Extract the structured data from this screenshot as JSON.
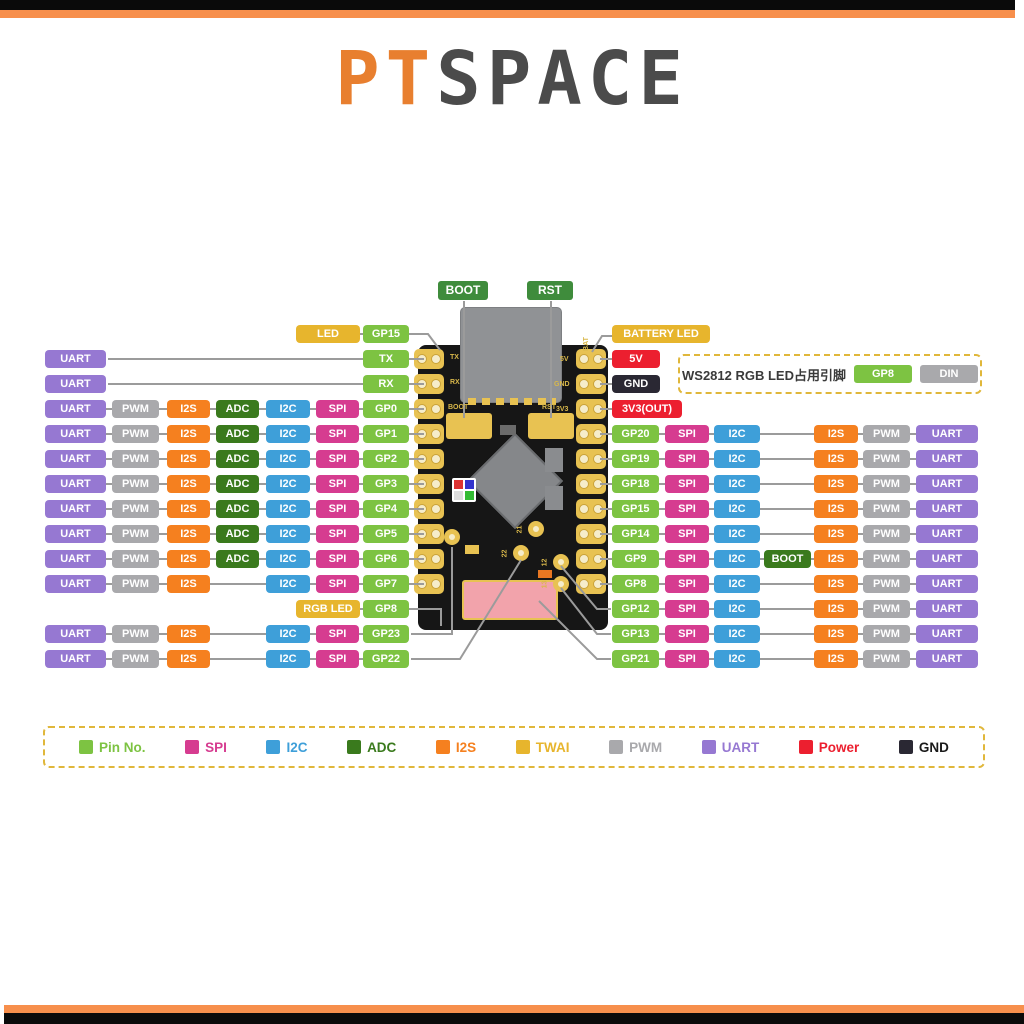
{
  "brand": {
    "pt": "PT",
    "space": "SPACE"
  },
  "colors": {
    "pin": "#7DC342",
    "spi": "#D63C90",
    "i2c": "#3E9FD9",
    "adc": "#3A7A1D",
    "i2s": "#F5801F",
    "twai": "#E7B52D",
    "pwm": "#A9A9AC",
    "uart": "#9678D2",
    "power": "#EC1F2F",
    "gnd": "#2A2833",
    "boot_label": "#3F8C3C",
    "wire": "#9B9B9B",
    "accent_orange": "#F78F4C",
    "logo_orange": "#E87F2F",
    "logo_dark": "#4B4B4B",
    "pcb": "#161616",
    "pad_gold": "#E8C252",
    "antenna_pink": "#F2A3AB"
  },
  "top_labels": {
    "boot": "BOOT",
    "rst": "RST"
  },
  "note": {
    "text": "WS2812 RGB LED占用引脚",
    "pin": "GP8",
    "din": "DIN"
  },
  "board": {
    "silk": {
      "tx": "TX",
      "rx": "RX",
      "boot": "BOOT",
      "rst": "RST",
      "bat": "BAT",
      "v5": "5V",
      "gnd": "GND",
      "v3": "3V3"
    },
    "via_labels": [
      "22",
      "21",
      "12",
      "13"
    ]
  },
  "left_rows": [
    {
      "chips": [
        {
          "slot": "led",
          "label": "LED",
          "type": "twai"
        },
        {
          "slot": "gp",
          "label": "GP15",
          "type": "pin"
        }
      ]
    },
    {
      "chips": [
        {
          "slot": "uart",
          "label": "UART",
          "type": "uart"
        },
        {
          "slot": "gp",
          "label": "TX",
          "type": "pin"
        }
      ]
    },
    {
      "chips": [
        {
          "slot": "uart",
          "label": "UART",
          "type": "uart"
        },
        {
          "slot": "gp",
          "label": "RX",
          "type": "pin"
        }
      ]
    },
    {
      "chips": [
        {
          "slot": "uart",
          "label": "UART",
          "type": "uart"
        },
        {
          "slot": "pwm",
          "label": "PWM",
          "type": "pwm"
        },
        {
          "slot": "i2s",
          "label": "I2S",
          "type": "i2s"
        },
        {
          "slot": "adc",
          "label": "ADC",
          "type": "adc"
        },
        {
          "slot": "i2c",
          "label": "I2C",
          "type": "i2c"
        },
        {
          "slot": "spi",
          "label": "SPI",
          "type": "spi"
        },
        {
          "slot": "gp",
          "label": "GP0",
          "type": "pin"
        }
      ]
    },
    {
      "chips": [
        {
          "slot": "uart",
          "label": "UART",
          "type": "uart"
        },
        {
          "slot": "pwm",
          "label": "PWM",
          "type": "pwm"
        },
        {
          "slot": "i2s",
          "label": "I2S",
          "type": "i2s"
        },
        {
          "slot": "adc",
          "label": "ADC",
          "type": "adc"
        },
        {
          "slot": "i2c",
          "label": "I2C",
          "type": "i2c"
        },
        {
          "slot": "spi",
          "label": "SPI",
          "type": "spi"
        },
        {
          "slot": "gp",
          "label": "GP1",
          "type": "pin"
        }
      ]
    },
    {
      "chips": [
        {
          "slot": "uart",
          "label": "UART",
          "type": "uart"
        },
        {
          "slot": "pwm",
          "label": "PWM",
          "type": "pwm"
        },
        {
          "slot": "i2s",
          "label": "I2S",
          "type": "i2s"
        },
        {
          "slot": "adc",
          "label": "ADC",
          "type": "adc"
        },
        {
          "slot": "i2c",
          "label": "I2C",
          "type": "i2c"
        },
        {
          "slot": "spi",
          "label": "SPI",
          "type": "spi"
        },
        {
          "slot": "gp",
          "label": "GP2",
          "type": "pin"
        }
      ]
    },
    {
      "chips": [
        {
          "slot": "uart",
          "label": "UART",
          "type": "uart"
        },
        {
          "slot": "pwm",
          "label": "PWM",
          "type": "pwm"
        },
        {
          "slot": "i2s",
          "label": "I2S",
          "type": "i2s"
        },
        {
          "slot": "adc",
          "label": "ADC",
          "type": "adc"
        },
        {
          "slot": "i2c",
          "label": "I2C",
          "type": "i2c"
        },
        {
          "slot": "spi",
          "label": "SPI",
          "type": "spi"
        },
        {
          "slot": "gp",
          "label": "GP3",
          "type": "pin"
        }
      ]
    },
    {
      "chips": [
        {
          "slot": "uart",
          "label": "UART",
          "type": "uart"
        },
        {
          "slot": "pwm",
          "label": "PWM",
          "type": "pwm"
        },
        {
          "slot": "i2s",
          "label": "I2S",
          "type": "i2s"
        },
        {
          "slot": "adc",
          "label": "ADC",
          "type": "adc"
        },
        {
          "slot": "i2c",
          "label": "I2C",
          "type": "i2c"
        },
        {
          "slot": "spi",
          "label": "SPI",
          "type": "spi"
        },
        {
          "slot": "gp",
          "label": "GP4",
          "type": "pin"
        }
      ]
    },
    {
      "chips": [
        {
          "slot": "uart",
          "label": "UART",
          "type": "uart"
        },
        {
          "slot": "pwm",
          "label": "PWM",
          "type": "pwm"
        },
        {
          "slot": "i2s",
          "label": "I2S",
          "type": "i2s"
        },
        {
          "slot": "adc",
          "label": "ADC",
          "type": "adc"
        },
        {
          "slot": "i2c",
          "label": "I2C",
          "type": "i2c"
        },
        {
          "slot": "spi",
          "label": "SPI",
          "type": "spi"
        },
        {
          "slot": "gp",
          "label": "GP5",
          "type": "pin"
        }
      ]
    },
    {
      "chips": [
        {
          "slot": "uart",
          "label": "UART",
          "type": "uart"
        },
        {
          "slot": "pwm",
          "label": "PWM",
          "type": "pwm"
        },
        {
          "slot": "i2s",
          "label": "I2S",
          "type": "i2s"
        },
        {
          "slot": "adc",
          "label": "ADC",
          "type": "adc"
        },
        {
          "slot": "i2c",
          "label": "I2C",
          "type": "i2c"
        },
        {
          "slot": "spi",
          "label": "SPI",
          "type": "spi"
        },
        {
          "slot": "gp",
          "label": "GP6",
          "type": "pin"
        }
      ]
    },
    {
      "chips": [
        {
          "slot": "uart",
          "label": "UART",
          "type": "uart"
        },
        {
          "slot": "pwm",
          "label": "PWM",
          "type": "pwm"
        },
        {
          "slot": "i2s",
          "label": "I2S",
          "type": "i2s"
        },
        {
          "slot": "i2c",
          "label": "I2C",
          "type": "i2c"
        },
        {
          "slot": "spi",
          "label": "SPI",
          "type": "spi"
        },
        {
          "slot": "gp",
          "label": "GP7",
          "type": "pin"
        }
      ]
    },
    {
      "chips": [
        {
          "slot": "led",
          "label": "RGB LED",
          "type": "twai"
        },
        {
          "slot": "gp",
          "label": "GP8",
          "type": "pin"
        }
      ]
    },
    {
      "chips": [
        {
          "slot": "uart",
          "label": "UART",
          "type": "uart"
        },
        {
          "slot": "pwm",
          "label": "PWM",
          "type": "pwm"
        },
        {
          "slot": "i2s",
          "label": "I2S",
          "type": "i2s"
        },
        {
          "slot": "i2c",
          "label": "I2C",
          "type": "i2c"
        },
        {
          "slot": "spi",
          "label": "SPI",
          "type": "spi"
        },
        {
          "slot": "gp",
          "label": "GP23",
          "type": "pin"
        }
      ]
    },
    {
      "chips": [
        {
          "slot": "uart",
          "label": "UART",
          "type": "uart"
        },
        {
          "slot": "pwm",
          "label": "PWM",
          "type": "pwm"
        },
        {
          "slot": "i2s",
          "label": "I2S",
          "type": "i2s"
        },
        {
          "slot": "i2c",
          "label": "I2C",
          "type": "i2c"
        },
        {
          "slot": "spi",
          "label": "SPI",
          "type": "spi"
        },
        {
          "slot": "gp",
          "label": "GP22",
          "type": "pin"
        }
      ]
    }
  ],
  "right_rows": [
    {
      "chips": [
        {
          "slot": "wide",
          "label": "BATTERY LED",
          "type": "twai"
        }
      ]
    },
    {
      "chips": [
        {
          "slot": "pwr",
          "label": "5V",
          "type": "power"
        }
      ]
    },
    {
      "chips": [
        {
          "slot": "pwr",
          "label": "GND",
          "type": "gnd"
        }
      ]
    },
    {
      "chips": [
        {
          "slot": "pwr3",
          "label": "3V3(OUT)",
          "type": "power"
        }
      ]
    },
    {
      "chips": [
        {
          "slot": "gp",
          "label": "GP20",
          "type": "pin"
        },
        {
          "slot": "spi",
          "label": "SPI",
          "type": "spi"
        },
        {
          "slot": "i2c",
          "label": "I2C",
          "type": "i2c"
        },
        {
          "slot": "i2s",
          "label": "I2S",
          "type": "i2s"
        },
        {
          "slot": "pwm",
          "label": "PWM",
          "type": "pwm"
        },
        {
          "slot": "uart",
          "label": "UART",
          "type": "uart"
        }
      ]
    },
    {
      "chips": [
        {
          "slot": "gp",
          "label": "GP19",
          "type": "pin"
        },
        {
          "slot": "spi",
          "label": "SPI",
          "type": "spi"
        },
        {
          "slot": "i2c",
          "label": "I2C",
          "type": "i2c"
        },
        {
          "slot": "i2s",
          "label": "I2S",
          "type": "i2s"
        },
        {
          "slot": "pwm",
          "label": "PWM",
          "type": "pwm"
        },
        {
          "slot": "uart",
          "label": "UART",
          "type": "uart"
        }
      ]
    },
    {
      "chips": [
        {
          "slot": "gp",
          "label": "GP18",
          "type": "pin"
        },
        {
          "slot": "spi",
          "label": "SPI",
          "type": "spi"
        },
        {
          "slot": "i2c",
          "label": "I2C",
          "type": "i2c"
        },
        {
          "slot": "i2s",
          "label": "I2S",
          "type": "i2s"
        },
        {
          "slot": "pwm",
          "label": "PWM",
          "type": "pwm"
        },
        {
          "slot": "uart",
          "label": "UART",
          "type": "uart"
        }
      ]
    },
    {
      "chips": [
        {
          "slot": "gp",
          "label": "GP15",
          "type": "pin"
        },
        {
          "slot": "spi",
          "label": "SPI",
          "type": "spi"
        },
        {
          "slot": "i2c",
          "label": "I2C",
          "type": "i2c"
        },
        {
          "slot": "i2s",
          "label": "I2S",
          "type": "i2s"
        },
        {
          "slot": "pwm",
          "label": "PWM",
          "type": "pwm"
        },
        {
          "slot": "uart",
          "label": "UART",
          "type": "uart"
        }
      ]
    },
    {
      "chips": [
        {
          "slot": "gp",
          "label": "GP14",
          "type": "pin"
        },
        {
          "slot": "spi",
          "label": "SPI",
          "type": "spi"
        },
        {
          "slot": "i2c",
          "label": "I2C",
          "type": "i2c"
        },
        {
          "slot": "i2s",
          "label": "I2S",
          "type": "i2s"
        },
        {
          "slot": "pwm",
          "label": "PWM",
          "type": "pwm"
        },
        {
          "slot": "uart",
          "label": "UART",
          "type": "uart"
        }
      ]
    },
    {
      "chips": [
        {
          "slot": "gp",
          "label": "GP9",
          "type": "pin"
        },
        {
          "slot": "spi",
          "label": "SPI",
          "type": "spi"
        },
        {
          "slot": "i2c",
          "label": "I2C",
          "type": "i2c"
        },
        {
          "slot": "boot",
          "label": "BOOT",
          "type": "adc"
        },
        {
          "slot": "i2s",
          "label": "I2S",
          "type": "i2s"
        },
        {
          "slot": "pwm",
          "label": "PWM",
          "type": "pwm"
        },
        {
          "slot": "uart",
          "label": "UART",
          "type": "uart"
        }
      ]
    },
    {
      "chips": [
        {
          "slot": "gp",
          "label": "GP8",
          "type": "pin"
        },
        {
          "slot": "spi",
          "label": "SPI",
          "type": "spi"
        },
        {
          "slot": "i2c",
          "label": "I2C",
          "type": "i2c"
        },
        {
          "slot": "i2s",
          "label": "I2S",
          "type": "i2s"
        },
        {
          "slot": "pwm",
          "label": "PWM",
          "type": "pwm"
        },
        {
          "slot": "uart",
          "label": "UART",
          "type": "uart"
        }
      ]
    },
    {
      "chips": [
        {
          "slot": "gp",
          "label": "GP12",
          "type": "pin"
        },
        {
          "slot": "spi",
          "label": "SPI",
          "type": "spi"
        },
        {
          "slot": "i2c",
          "label": "I2C",
          "type": "i2c"
        },
        {
          "slot": "i2s",
          "label": "I2S",
          "type": "i2s"
        },
        {
          "slot": "pwm",
          "label": "PWM",
          "type": "pwm"
        },
        {
          "slot": "uart",
          "label": "UART",
          "type": "uart"
        }
      ]
    },
    {
      "chips": [
        {
          "slot": "gp",
          "label": "GP13",
          "type": "pin"
        },
        {
          "slot": "spi",
          "label": "SPI",
          "type": "spi"
        },
        {
          "slot": "i2c",
          "label": "I2C",
          "type": "i2c"
        },
        {
          "slot": "i2s",
          "label": "I2S",
          "type": "i2s"
        },
        {
          "slot": "pwm",
          "label": "PWM",
          "type": "pwm"
        },
        {
          "slot": "uart",
          "label": "UART",
          "type": "uart"
        }
      ]
    },
    {
      "chips": [
        {
          "slot": "gp",
          "label": "GP21",
          "type": "pin"
        },
        {
          "slot": "spi",
          "label": "SPI",
          "type": "spi"
        },
        {
          "slot": "i2c",
          "label": "I2C",
          "type": "i2c"
        },
        {
          "slot": "i2s",
          "label": "I2S",
          "type": "i2s"
        },
        {
          "slot": "pwm",
          "label": "PWM",
          "type": "pwm"
        },
        {
          "slot": "uart",
          "label": "UART",
          "type": "uart"
        }
      ]
    }
  ],
  "legend": [
    {
      "label": "Pin No.",
      "type": "pin"
    },
    {
      "label": "SPI",
      "type": "spi"
    },
    {
      "label": "I2C",
      "type": "i2c"
    },
    {
      "label": "ADC",
      "type": "adc"
    },
    {
      "label": "I2S",
      "type": "i2s"
    },
    {
      "label": "TWAI",
      "type": "twai"
    },
    {
      "label": "PWM",
      "type": "pwm"
    },
    {
      "label": "UART",
      "type": "uart"
    },
    {
      "label": "Power",
      "type": "power"
    },
    {
      "label": "GND",
      "type": "gnd"
    }
  ]
}
